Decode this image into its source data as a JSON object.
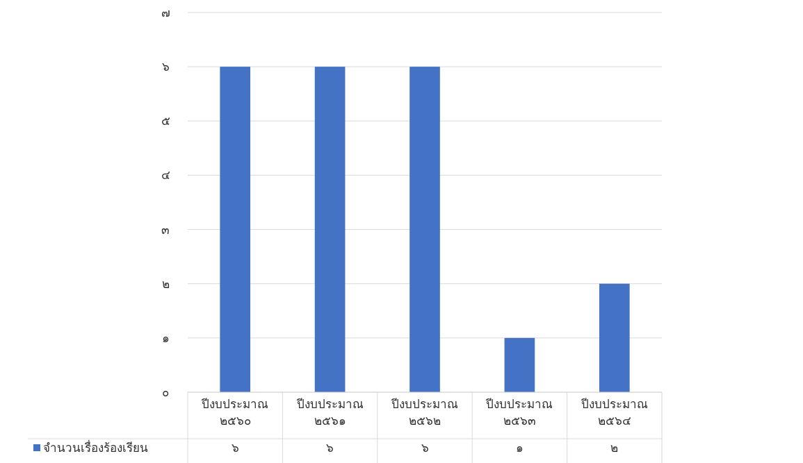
{
  "chart_data": {
    "type": "bar",
    "categories": [
      "ปีงบประมาณ ๒๕๖๐",
      "ปีงบประมาณ ๒๕๖๑",
      "ปีงบประมาณ ๒๕๖๒",
      "ปีงบประมาณ ๒๕๖๓",
      "ปีงบประมาณ ๒๕๖๔"
    ],
    "series": [
      {
        "name": "จำนวนเรื่องร้องเรียน",
        "color": "#4472c4",
        "values": [
          6,
          6,
          6,
          1,
          2
        ],
        "value_labels": [
          "๖",
          "๖",
          "๖",
          "๑",
          "๒"
        ]
      }
    ],
    "ylim": [
      0,
      7
    ],
    "yticks": [
      {
        "value": 0,
        "label": "๐"
      },
      {
        "value": 1,
        "label": "๑"
      },
      {
        "value": 2,
        "label": "๒"
      },
      {
        "value": 3,
        "label": "๓"
      },
      {
        "value": 4,
        "label": "๔"
      },
      {
        "value": 5,
        "label": "๕"
      },
      {
        "value": 6,
        "label": "๖"
      },
      {
        "value": 7,
        "label": "๗"
      }
    ],
    "grid": "y",
    "legend": "bottom"
  }
}
